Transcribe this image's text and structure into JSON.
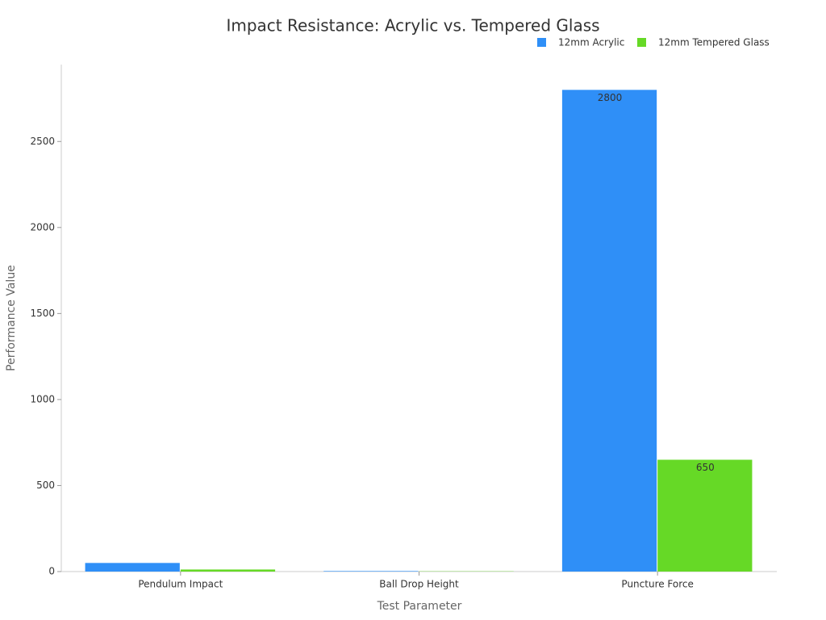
{
  "chart_data": {
    "type": "bar",
    "title": "Impact Resistance: Acrylic vs. Tempered Glass",
    "x_label": "Test Parameter",
    "y_label": "Performance Value",
    "categories": [
      "Pendulum Impact",
      "Ball Drop Height",
      "Puncture Force"
    ],
    "series": [
      {
        "name": "12mm Acrylic",
        "color": "#2f8ff7",
        "values": [
          50,
          3,
          2800
        ]
      },
      {
        "name": "12mm Tempered Glass",
        "color": "#66d926",
        "values": [
          12,
          1.5,
          650
        ]
      }
    ],
    "ylim": [
      0,
      2947
    ],
    "yticks": [
      0,
      500,
      1000,
      1500,
      2000,
      2500
    ],
    "grid": false,
    "legend": "top-right"
  }
}
